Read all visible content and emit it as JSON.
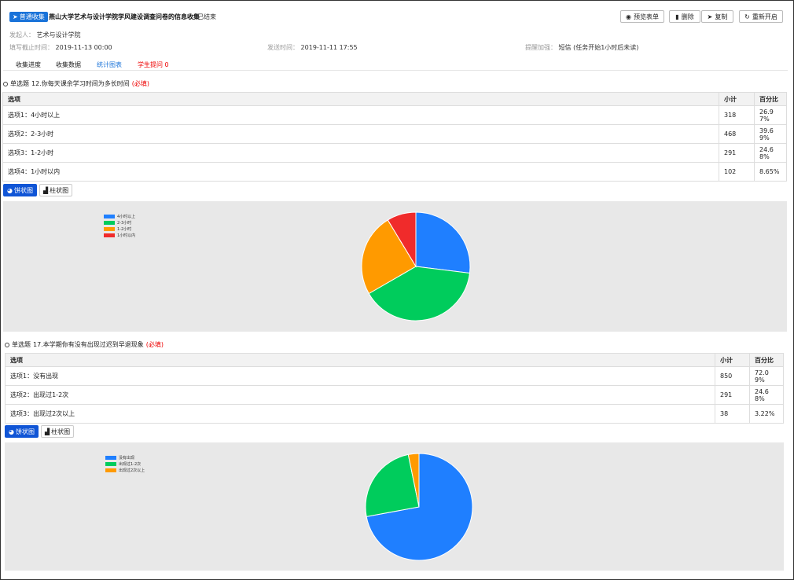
{
  "header": {
    "badge": "普通收集",
    "title": "燕山大学艺术与设计学院学风建设调查问卷的信息收集",
    "status": "已结束",
    "buttons": {
      "preview": "预览表单",
      "delete": "删除",
      "copy": "复制",
      "restart": "重新开启"
    }
  },
  "meta": {
    "initiator_label": "发起人：",
    "initiator": "艺术与设计学院",
    "deadline_label": "填写截止时间：",
    "deadline": "2019-11-13 00:00",
    "sent_label": "发送时间：",
    "sent": "2019-11-11 17:55",
    "reminder_label": "提醒加强：",
    "reminder": "短信 (任务开始1小时后未读)"
  },
  "tabs": [
    "收集进度",
    "收集数据",
    "统计图表",
    "学生提问 0"
  ],
  "questions": [
    {
      "type": "单选题",
      "title": "12.你每天课余学习时间为多长时间",
      "required": "(必填)",
      "col_option": "选项",
      "col_count": "小计",
      "col_percent": "百分比",
      "rows": [
        {
          "option": "选项1：4小时以上",
          "count": "318",
          "percent_a": "26.9",
          "percent_b": "7%"
        },
        {
          "option": "选项2：2-3小时",
          "count": "468",
          "percent_a": "39.6",
          "percent_b": "9%"
        },
        {
          "option": "选项3：1-2小时",
          "count": "291",
          "percent_a": "24.6",
          "percent_b": "8%"
        },
        {
          "option": "选项4：1小时以内",
          "count": "102",
          "percent_a": "8.65%",
          "percent_b": ""
        }
      ],
      "toggle": {
        "pie": "饼状图",
        "bar": "柱状图"
      }
    },
    {
      "type": "单选题",
      "title": "17.本学期你有没有出现过迟到早退现象",
      "required": "(必填)",
      "col_option": "选项",
      "col_count": "小计",
      "col_percent": "百分比",
      "rows": [
        {
          "option": "选项1：没有出现",
          "count": "850",
          "percent_a": "72.0",
          "percent_b": "9%"
        },
        {
          "option": "选项2：出现过1-2次",
          "count": "291",
          "percent_a": "24.6",
          "percent_b": "8%"
        },
        {
          "option": "选项3：出现过2次以上",
          "count": "38",
          "percent_a": "3.22%",
          "percent_b": ""
        }
      ],
      "toggle": {
        "pie": "饼状图",
        "bar": "柱状图"
      }
    }
  ],
  "chart_data": [
    {
      "type": "pie",
      "categories": [
        "4小时以上",
        "2-3小时",
        "1-2小时",
        "1小时以内"
      ],
      "values": [
        318,
        468,
        291,
        102
      ],
      "colors": [
        "#1f7fff",
        "#00cc5c",
        "#ff9a00",
        "#f02b2b"
      ],
      "legend": "top-left"
    },
    {
      "type": "pie",
      "categories": [
        "没有出现",
        "出现过1-2次",
        "出现过2次以上"
      ],
      "values": [
        850,
        291,
        38
      ],
      "colors": [
        "#1f7fff",
        "#00cc5c",
        "#ff9a00"
      ],
      "legend": "top-left"
    }
  ]
}
